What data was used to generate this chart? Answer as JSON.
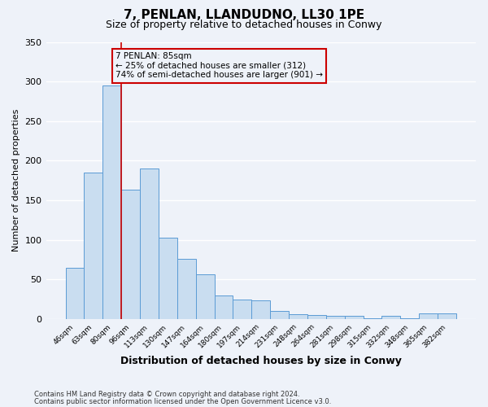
{
  "title": "7, PENLAN, LLANDUDNO, LL30 1PE",
  "subtitle": "Size of property relative to detached houses in Conwy",
  "xlabel": "Distribution of detached houses by size in Conwy",
  "ylabel": "Number of detached properties",
  "categories": [
    "46sqm",
    "63sqm",
    "80sqm",
    "96sqm",
    "113sqm",
    "130sqm",
    "147sqm",
    "164sqm",
    "180sqm",
    "197sqm",
    "214sqm",
    "231sqm",
    "248sqm",
    "264sqm",
    "281sqm",
    "298sqm",
    "315sqm",
    "332sqm",
    "348sqm",
    "365sqm",
    "382sqm"
  ],
  "values": [
    65,
    185,
    295,
    163,
    190,
    103,
    76,
    56,
    30,
    24,
    23,
    10,
    6,
    5,
    4,
    4,
    1,
    4,
    1,
    7,
    7
  ],
  "bar_color": "#c9ddf0",
  "bar_edge_color": "#5b9bd5",
  "annotation_title": "7 PENLAN: 85sqm",
  "annotation_line1": "← 25% of detached houses are smaller (312)",
  "annotation_line2": "74% of semi-detached houses are larger (901) →",
  "vline_color": "#cc0000",
  "vline_index": 2.5,
  "ylim": [
    0,
    350
  ],
  "yticks": [
    0,
    50,
    100,
    150,
    200,
    250,
    300,
    350
  ],
  "footnote1": "Contains HM Land Registry data © Crown copyright and database right 2024.",
  "footnote2": "Contains public sector information licensed under the Open Government Licence v3.0.",
  "bg_color": "#eef2f9",
  "grid_color": "#ffffff",
  "title_fontsize": 11,
  "subtitle_fontsize": 9,
  "annotation_box_edge_color": "#cc0000"
}
